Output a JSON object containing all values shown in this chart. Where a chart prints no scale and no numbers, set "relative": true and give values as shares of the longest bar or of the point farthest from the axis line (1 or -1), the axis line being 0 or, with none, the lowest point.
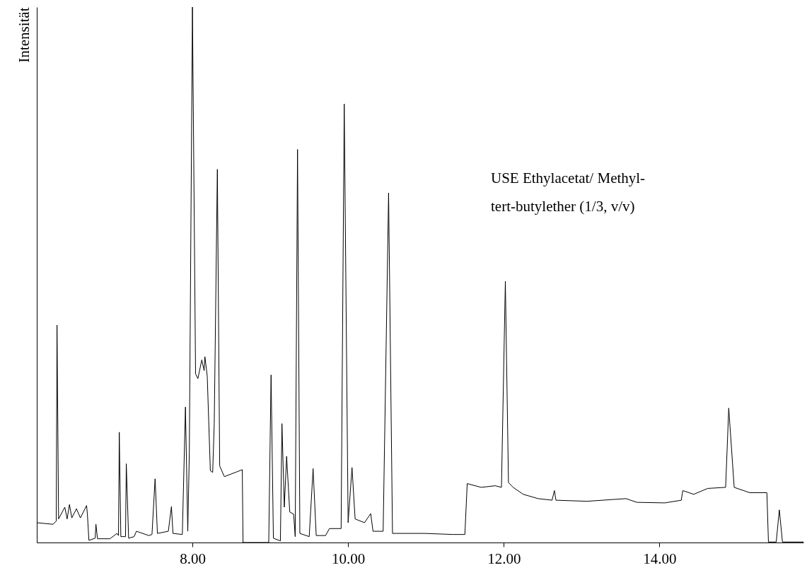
{
  "chart_data": {
    "type": "line",
    "ylabel": "Intensität",
    "relative": true,
    "xlim": [
      6.0,
      15.85
    ],
    "xticks": [
      {
        "value": 8,
        "label": "8.00"
      },
      {
        "value": 10,
        "label": "10.00"
      },
      {
        "value": 12,
        "label": "12.00"
      },
      {
        "value": 14,
        "label": "14.00"
      }
    ],
    "annotations": [
      "USE Ethylacetat/ Methyl-\ntert-butylether (1/3, v/v)"
    ],
    "grid": false,
    "marker": "none",
    "line_style": "solid",
    "series": [
      {
        "color": "#000000",
        "x": [
          6.0,
          6.21,
          6.25,
          6.26,
          6.28,
          6.36,
          6.39,
          6.42,
          6.45,
          6.51,
          6.56,
          6.64,
          6.65,
          6.67,
          6.75,
          6.76,
          6.78,
          6.94,
          7.03,
          7.05,
          7.06,
          7.08,
          7.14,
          7.15,
          7.18,
          7.25,
          7.28,
          7.44,
          7.48,
          7.52,
          7.55,
          7.69,
          7.73,
          7.75,
          7.87,
          7.91,
          7.94,
          7.96,
          8.0,
          8.04,
          8.07,
          8.12,
          8.15,
          8.16,
          8.19,
          8.23,
          8.26,
          8.28,
          8.32,
          8.35,
          8.41,
          8.57,
          8.64,
          8.65,
          8.98,
          9.01,
          9.04,
          9.13,
          9.15,
          9.18,
          9.21,
          9.25,
          9.3,
          9.32,
          9.35,
          9.38,
          9.5,
          9.55,
          9.59,
          9.71,
          9.76,
          9.91,
          9.95,
          10.0,
          10.05,
          10.09,
          10.21,
          10.29,
          10.32,
          10.45,
          10.52,
          10.57,
          10.98,
          11.35,
          11.5,
          11.53,
          11.71,
          11.89,
          11.97,
          12.02,
          12.06,
          12.12,
          12.25,
          12.44,
          12.62,
          12.65,
          12.67,
          13.07,
          13.57,
          13.71,
          14.07,
          14.28,
          14.3,
          14.44,
          14.62,
          14.85,
          14.89,
          14.96,
          15.16,
          15.38,
          15.4,
          15.5,
          15.54,
          15.58,
          15.85
        ],
        "values": [
          0.037,
          0.034,
          0.04,
          0.406,
          0.044,
          0.066,
          0.044,
          0.071,
          0.046,
          0.063,
          0.046,
          0.069,
          0.053,
          0.004,
          0.008,
          0.034,
          0.007,
          0.007,
          0.017,
          0.013,
          0.206,
          0.011,
          0.011,
          0.147,
          0.008,
          0.011,
          0.021,
          0.013,
          0.015,
          0.119,
          0.017,
          0.021,
          0.067,
          0.017,
          0.015,
          0.253,
          0.021,
          0.169,
          1.0,
          0.315,
          0.306,
          0.341,
          0.321,
          0.347,
          0.311,
          0.134,
          0.131,
          0.222,
          0.697,
          0.143,
          0.123,
          0.132,
          0.136,
          0.0,
          0.0,
          0.313,
          0.008,
          0.003,
          0.222,
          0.066,
          0.161,
          0.057,
          0.053,
          0.011,
          0.734,
          0.017,
          0.011,
          0.138,
          0.013,
          0.013,
          0.026,
          0.026,
          0.819,
          0.037,
          0.14,
          0.044,
          0.037,
          0.054,
          0.021,
          0.021,
          0.653,
          0.017,
          0.017,
          0.015,
          0.015,
          0.11,
          0.103,
          0.106,
          0.103,
          0.488,
          0.112,
          0.103,
          0.09,
          0.082,
          0.079,
          0.097,
          0.079,
          0.077,
          0.082,
          0.075,
          0.074,
          0.079,
          0.097,
          0.09,
          0.101,
          0.103,
          0.251,
          0.103,
          0.093,
          0.093,
          0.001,
          0.001,
          0.061,
          0.001,
          0.001
        ]
      }
    ]
  }
}
